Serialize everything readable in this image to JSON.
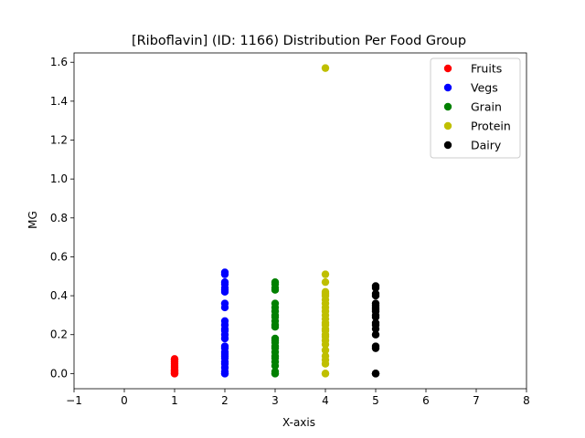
{
  "chart_data": {
    "type": "scatter",
    "title": "[Riboflavin] (ID: 1166) Distribution Per Food Group",
    "xlabel": "X-axis",
    "ylabel": "MG",
    "xlim": [
      -1,
      8
    ],
    "ylim": [
      -0.078,
      1.648
    ],
    "xticks": [
      "−1",
      "0",
      "1",
      "2",
      "3",
      "4",
      "5",
      "6",
      "7",
      "8"
    ],
    "yticks": [
      "0.0",
      "0.2",
      "0.4",
      "0.6",
      "0.8",
      "1.0",
      "1.2",
      "1.4",
      "1.6"
    ],
    "grid": false,
    "legend_position": "top-right",
    "series": [
      {
        "name": "Fruits",
        "color": "#ff0000",
        "x": [
          1,
          1,
          1,
          1,
          1,
          1,
          1,
          1,
          1,
          1,
          1,
          1
        ],
        "y": [
          0.0,
          0.0,
          0.005,
          0.01,
          0.015,
          0.02,
          0.03,
          0.04,
          0.05,
          0.06,
          0.07,
          0.075
        ]
      },
      {
        "name": "Vegs",
        "color": "#0000ff",
        "x": [
          2,
          2,
          2,
          2,
          2,
          2,
          2,
          2,
          2,
          2,
          2,
          2,
          2,
          2,
          2,
          2,
          2,
          2,
          2,
          2,
          2,
          2,
          2,
          2,
          2,
          2,
          2
        ],
        "y": [
          0.0,
          0.0,
          0.01,
          0.03,
          0.05,
          0.06,
          0.08,
          0.09,
          0.1,
          0.11,
          0.13,
          0.14,
          0.18,
          0.2,
          0.22,
          0.23,
          0.25,
          0.27,
          0.34,
          0.36,
          0.42,
          0.43,
          0.44,
          0.46,
          0.47,
          0.51,
          0.52
        ]
      },
      {
        "name": "Grain",
        "color": "#008000",
        "x": [
          3,
          3,
          3,
          3,
          3,
          3,
          3,
          3,
          3,
          3,
          3,
          3,
          3,
          3,
          3,
          3,
          3,
          3,
          3,
          3,
          3,
          3,
          3,
          3,
          3
        ],
        "y": [
          0.0,
          0.0,
          0.01,
          0.04,
          0.06,
          0.08,
          0.09,
          0.11,
          0.13,
          0.14,
          0.16,
          0.17,
          0.18,
          0.24,
          0.25,
          0.27,
          0.29,
          0.3,
          0.32,
          0.34,
          0.36,
          0.43,
          0.44,
          0.46,
          0.47
        ]
      },
      {
        "name": "Protein",
        "color": "#bfbf00",
        "x": [
          4,
          4,
          4,
          4,
          4,
          4,
          4,
          4,
          4,
          4,
          4,
          4,
          4,
          4,
          4,
          4,
          4,
          4,
          4,
          4,
          4,
          4,
          4,
          4,
          4,
          4
        ],
        "y": [
          0.0,
          0.0,
          0.05,
          0.07,
          0.09,
          0.12,
          0.15,
          0.17,
          0.19,
          0.2,
          0.22,
          0.23,
          0.25,
          0.26,
          0.28,
          0.3,
          0.32,
          0.34,
          0.36,
          0.38,
          0.4,
          0.41,
          0.42,
          0.47,
          0.51,
          1.57
        ]
      },
      {
        "name": "Dairy",
        "color": "#000000",
        "x": [
          5,
          5,
          5,
          5,
          5,
          5,
          5,
          5,
          5,
          5,
          5,
          5,
          5,
          5,
          5,
          5,
          5,
          5,
          5,
          5
        ],
        "y": [
          0.0,
          0.0,
          0.0,
          0.13,
          0.14,
          0.2,
          0.23,
          0.25,
          0.26,
          0.29,
          0.3,
          0.32,
          0.33,
          0.34,
          0.35,
          0.36,
          0.4,
          0.41,
          0.44,
          0.45
        ]
      }
    ]
  }
}
